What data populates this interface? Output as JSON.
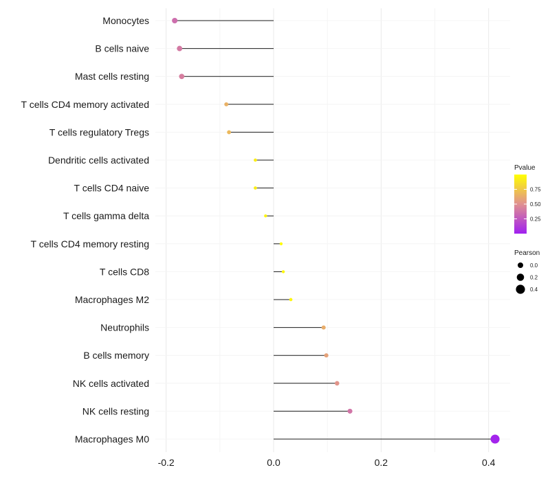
{
  "chart_data": {
    "type": "lollipop",
    "title": "",
    "xlabel": "",
    "ylabel": "",
    "xlim": [
      -0.22,
      0.44
    ],
    "x_ticks": [
      -0.2,
      0.0,
      0.2,
      0.4
    ],
    "x_tick_labels": [
      "-0.2",
      "0.0",
      "0.2",
      "0.4"
    ],
    "grid": true,
    "categories": [
      "Monocytes",
      "B cells naive",
      "Mast cells resting",
      "T cells CD4 memory activated",
      "T cells regulatory  Tregs ",
      "Dendritic cells activated",
      "T cells CD4 naive",
      "T cells gamma delta",
      "T cells CD4 memory resting",
      "T cells CD8",
      "Macrophages M2",
      "Neutrophils",
      "B cells memory",
      "NK cells activated",
      "NK cells resting",
      "Macrophages M0"
    ],
    "pearson": [
      -0.184,
      -0.175,
      -0.171,
      -0.088,
      -0.083,
      -0.034,
      -0.034,
      -0.015,
      0.014,
      0.018,
      0.032,
      0.093,
      0.098,
      0.118,
      0.142,
      0.412
    ],
    "pvalue": [
      0.35,
      0.4,
      0.42,
      0.65,
      0.68,
      0.92,
      0.92,
      0.95,
      0.98,
      0.97,
      0.96,
      0.63,
      0.58,
      0.52,
      0.38,
      0.02
    ],
    "legend": {
      "position": "right",
      "color": {
        "title": "Pvalue",
        "ticks": [
          0.25,
          0.5,
          0.75
        ],
        "tick_labels": [
          "0.25",
          "0.50",
          "0.75"
        ],
        "range": [
          0.0,
          1.0
        ],
        "low_color": "#a020f0",
        "mid_color": "#e09090",
        "high_color": "#ffff00"
      },
      "size": {
        "title": "Pearson",
        "values": [
          0.0,
          0.2,
          0.4
        ],
        "labels": [
          "0.0",
          "0.2",
          "0.4"
        ]
      }
    }
  }
}
